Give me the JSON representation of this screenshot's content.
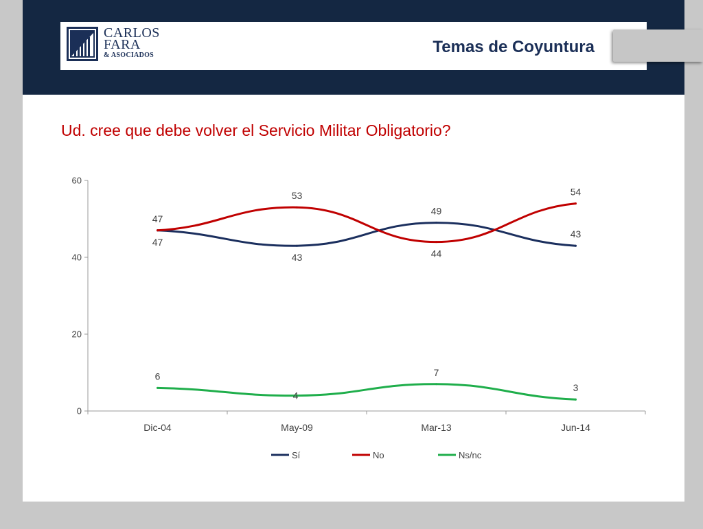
{
  "header": {
    "logo": {
      "line1": "CARLOS",
      "line2": "FARA",
      "line3": "& ASOCIADOS"
    },
    "section_title": "Temas de Coyuntura"
  },
  "question": "Ud. cree que debe volver el Servicio Militar Obligatorio?",
  "colors": {
    "banner": "#142742",
    "accent_red": "#c00000",
    "si": "#1b2f5e",
    "no": "#c00000",
    "nsnc": "#1fae4b"
  },
  "chart_data": {
    "type": "line",
    "categories": [
      "Dic-04",
      "May-09",
      "Mar-13",
      "Jun-14"
    ],
    "series": [
      {
        "name": "Sí",
        "values": [
          47,
          43,
          49,
          43
        ],
        "color": "#1b2f5e"
      },
      {
        "name": "No",
        "values": [
          47,
          53,
          44,
          54
        ],
        "color": "#c00000"
      },
      {
        "name": "Ns/nc",
        "values": [
          6,
          4,
          7,
          3
        ],
        "color": "#1fae4b"
      }
    ],
    "ylim": [
      0,
      60
    ],
    "yticks": [
      0,
      20,
      40,
      60
    ],
    "smooth": true,
    "grid": false,
    "legend": "bottom",
    "data_labels": true
  }
}
